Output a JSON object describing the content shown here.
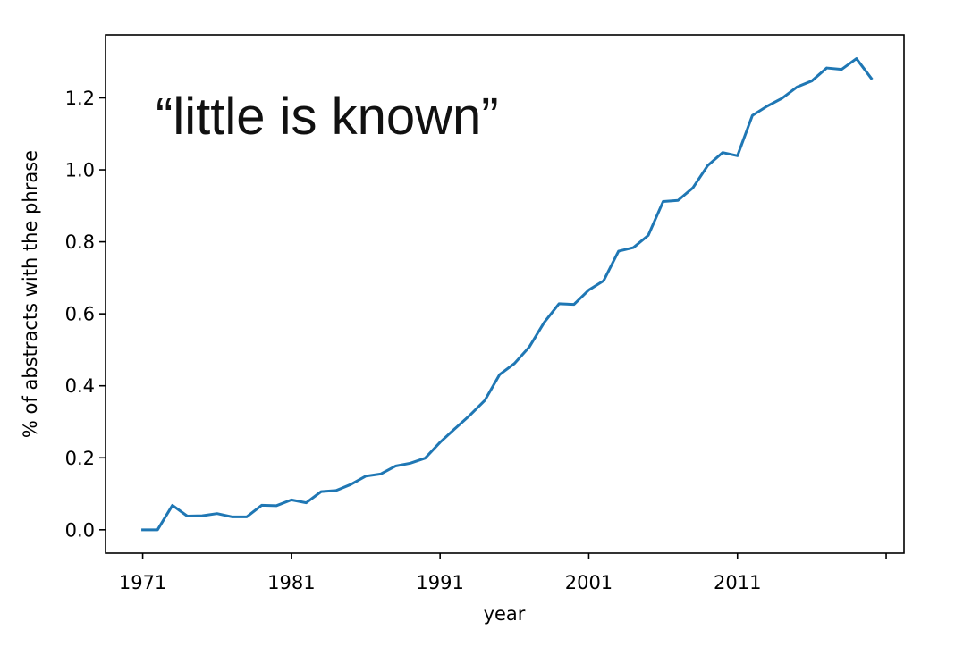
{
  "chart_data": {
    "type": "line",
    "title": "",
    "annotation": "“little is known”",
    "xlabel": "year",
    "ylabel": "% of abstracts with the phrase",
    "xlim": [
      1968.5,
      2022.2
    ],
    "ylim": [
      -0.065,
      1.375
    ],
    "xticks": [
      1971,
      1981,
      1991,
      2001,
      2011,
      2021
    ],
    "xtick_labels": [
      "1971",
      "1981",
      "1991",
      "2001",
      "2011",
      ""
    ],
    "yticks": [
      0.0,
      0.2,
      0.4,
      0.6,
      0.8,
      1.0,
      1.2
    ],
    "ytick_labels": [
      "0.0",
      "0.2",
      "0.4",
      "0.6",
      "0.8",
      "1.0",
      "1.2"
    ],
    "grid": false,
    "legend": "none",
    "series": [
      {
        "color": "#1f77b4",
        "x": [
          1971,
          1972,
          1973,
          1974,
          1975,
          1976,
          1977,
          1978,
          1979,
          1980,
          1981,
          1982,
          1983,
          1984,
          1985,
          1986,
          1987,
          1988,
          1989,
          1990,
          1991,
          1992,
          1993,
          1994,
          1995,
          1996,
          1997,
          1998,
          1999,
          2000,
          2001,
          2002,
          2003,
          2004,
          2005,
          2006,
          2007,
          2008,
          2009,
          2010,
          2011,
          2012,
          2013,
          2014,
          2015,
          2016,
          2017,
          2018,
          2019,
          2020
        ],
        "y": [
          0.0,
          0.0,
          0.068,
          0.038,
          0.039,
          0.045,
          0.036,
          0.036,
          0.068,
          0.067,
          0.083,
          0.075,
          0.106,
          0.109,
          0.126,
          0.149,
          0.155,
          0.177,
          0.185,
          0.199,
          0.243,
          0.281,
          0.318,
          0.359,
          0.431,
          0.462,
          0.508,
          0.576,
          0.628,
          0.626,
          0.666,
          0.692,
          0.774,
          0.784,
          0.818,
          0.912,
          0.915,
          0.95,
          1.012,
          1.048,
          1.039,
          1.151,
          1.177,
          1.199,
          1.23,
          1.247,
          1.283,
          1.279,
          1.309,
          1.254
        ]
      }
    ]
  }
}
